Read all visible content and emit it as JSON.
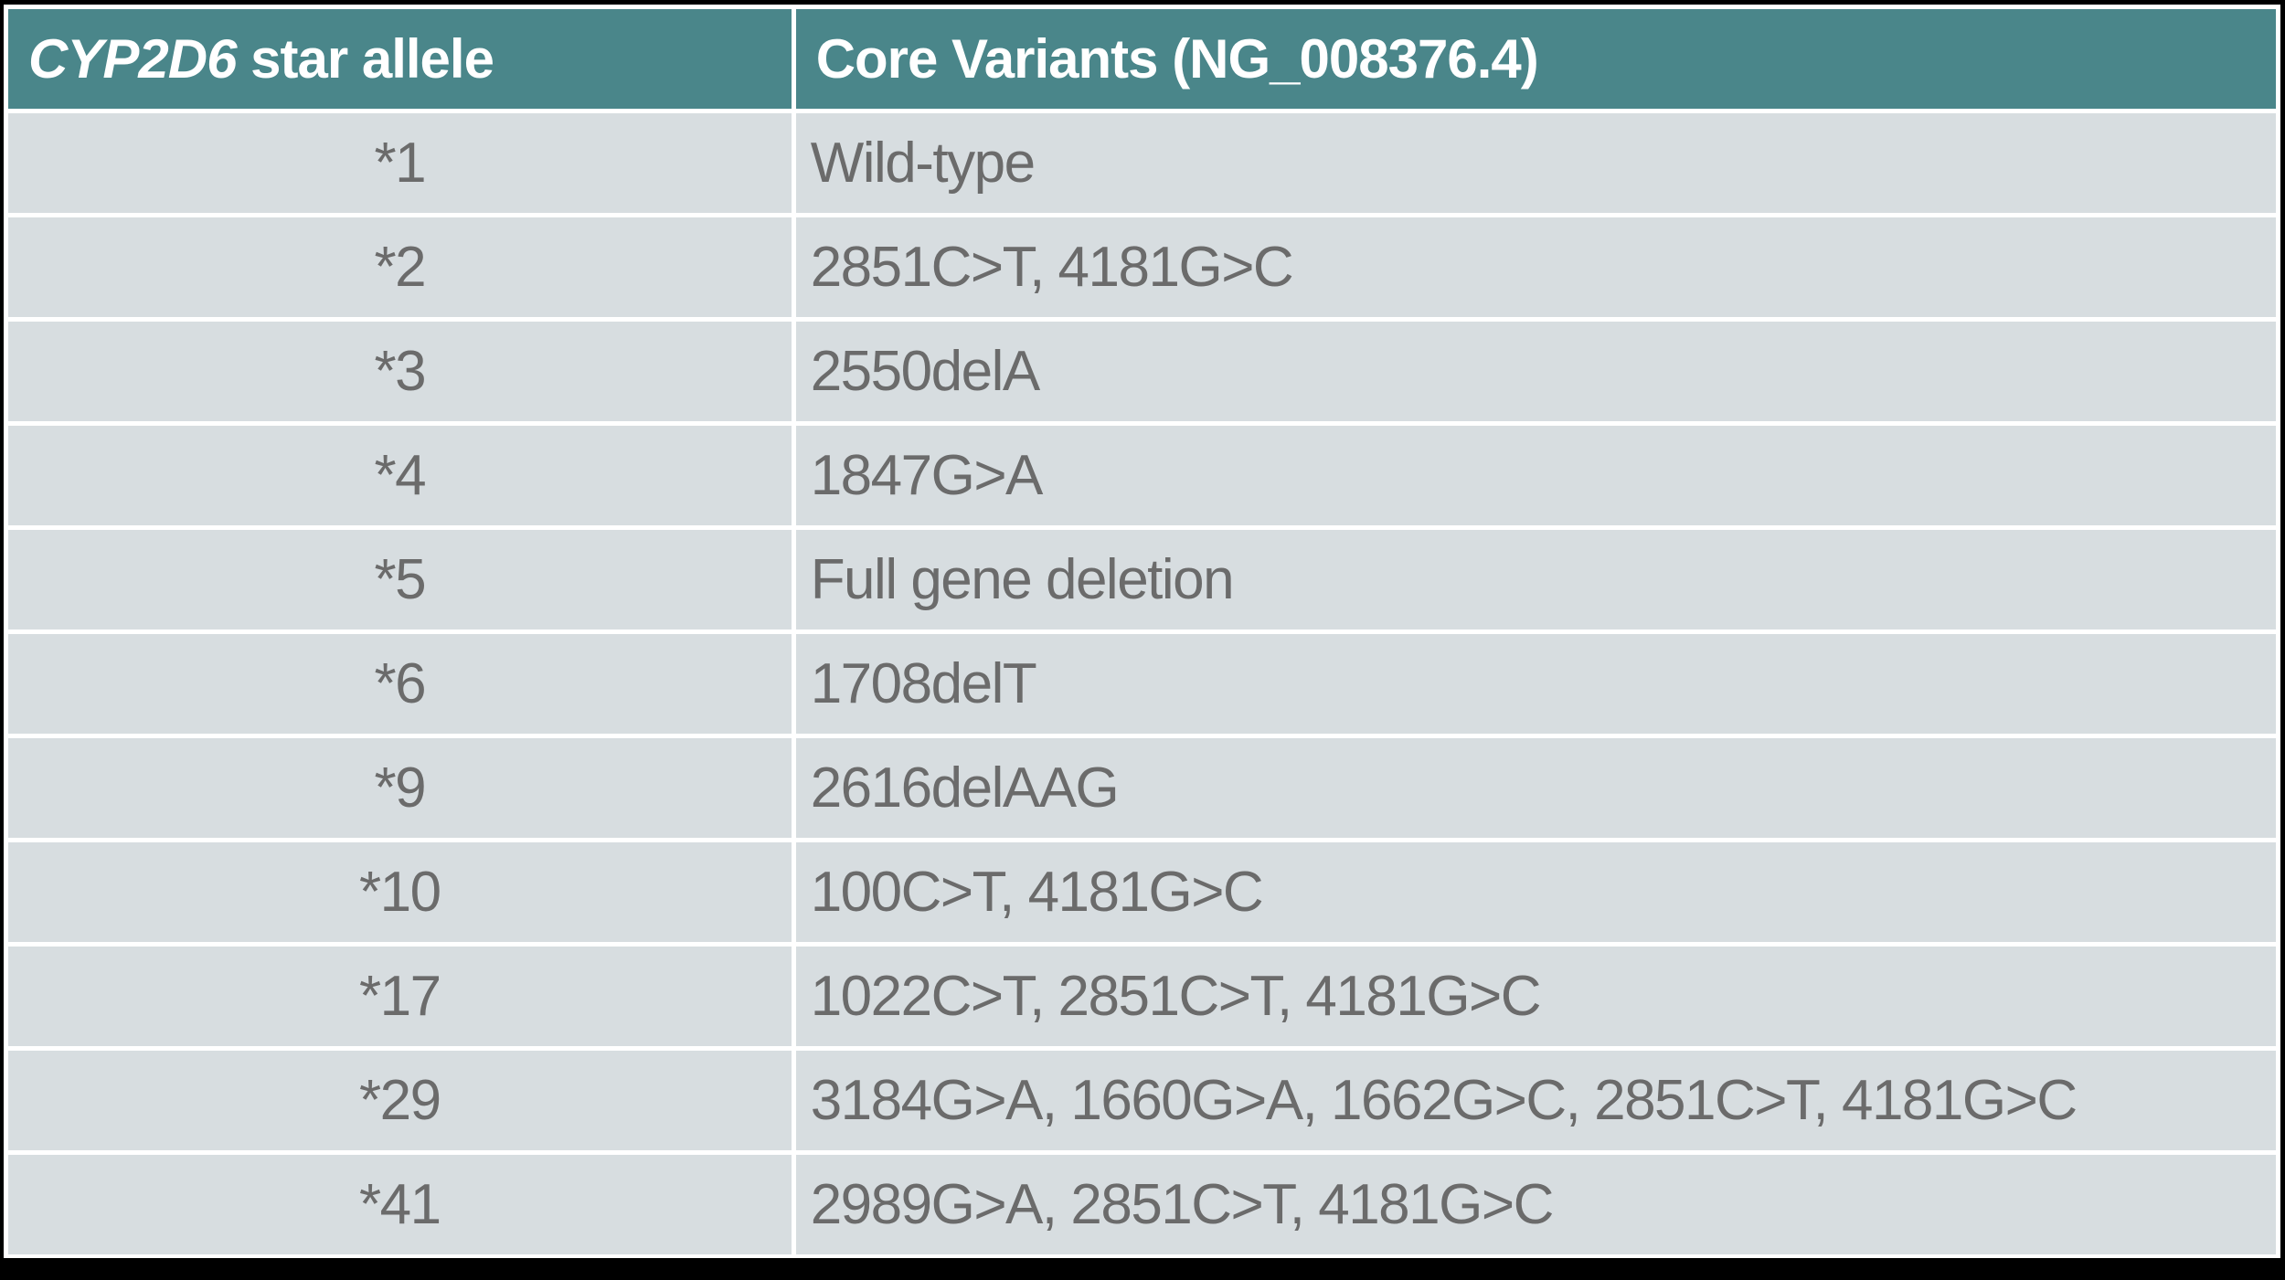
{
  "page": {
    "frame_color": "#000000",
    "slide_background": "#FFFFFF"
  },
  "colors": {
    "header_bg": "#4A868A",
    "header_text": "#FFFFFF",
    "row_bg": "#D7DDE0",
    "row_text": "#6B6B6B",
    "divider": "#FFFFFF",
    "frame": "#000000"
  },
  "table": {
    "header": {
      "gene": "CYP2D6",
      "allele_suffix": " star allele",
      "variants": "Core Variants (NG_008376.4)"
    }
  },
  "chart_data": {
    "type": "table",
    "title": "CYP2D6 star allele core variants",
    "columns": [
      "CYP2D6 star allele",
      "Core Variants (NG_008376.4)"
    ],
    "rows": [
      [
        "*1",
        "Wild-type"
      ],
      [
        "*2",
        "2851C>T, 4181G>C"
      ],
      [
        "*3",
        "2550delA"
      ],
      [
        "*4",
        "1847G>A"
      ],
      [
        "*5",
        "Full gene deletion"
      ],
      [
        "*6",
        "1708delT"
      ],
      [
        "*9",
        "2616delAAG"
      ],
      [
        "*10",
        "100C>T, 4181G>C"
      ],
      [
        "*17",
        "1022C>T, 2851C>T, 4181G>C"
      ],
      [
        "*29",
        "3184G>A, 1660G>A, 1662G>C, 2851C>T, 4181G>C"
      ],
      [
        "*41",
        "2989G>A, 2851C>T, 4181G>C"
      ]
    ]
  }
}
